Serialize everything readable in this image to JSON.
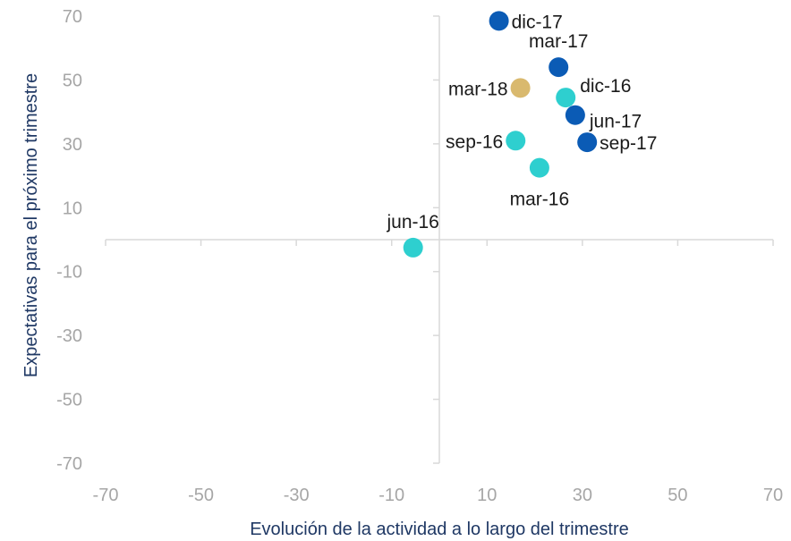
{
  "chart_data": {
    "type": "scatter",
    "title": "",
    "xlabel": "Evolución de la actividad a lo largo del trimestre",
    "ylabel": "Expectativas para el próximo trimestre",
    "xlim": [
      -70,
      70
    ],
    "ylim": [
      -70,
      70
    ],
    "x_ticks": [
      "-70",
      "-50",
      "-30",
      "-10",
      "10",
      "30",
      "50",
      "70"
    ],
    "y_ticks": [
      "70",
      "50",
      "30",
      "10",
      "-10",
      "-30",
      "-50",
      "-70"
    ],
    "grid": false,
    "legend": "none",
    "colors": {
      "2016": "#2ecfcf",
      "2017": "#0b5bb5",
      "2018": "#d9b96e"
    },
    "points": [
      {
        "label": "mar-16",
        "x": 21,
        "y": 22.5,
        "group": "2016",
        "label_pos": "below"
      },
      {
        "label": "jun-16",
        "x": -5.5,
        "y": -2.5,
        "group": "2016",
        "label_pos": "above"
      },
      {
        "label": "sep-16",
        "x": 16,
        "y": 31,
        "group": "2016",
        "label_pos": "left"
      },
      {
        "label": "dic-16",
        "x": 26.5,
        "y": 44.5,
        "group": "2016",
        "label_pos": "right-above"
      },
      {
        "label": "mar-17",
        "x": 25,
        "y": 54,
        "group": "2017",
        "label_pos": "above"
      },
      {
        "label": "jun-17",
        "x": 28.5,
        "y": 39,
        "group": "2017",
        "label_pos": "right-below"
      },
      {
        "label": "sep-17",
        "x": 31,
        "y": 30.5,
        "group": "2017",
        "label_pos": "right"
      },
      {
        "label": "dic-17",
        "x": 12.5,
        "y": 68.5,
        "group": "2017",
        "label_pos": "right"
      },
      {
        "label": "mar-18",
        "x": 17,
        "y": 47.5,
        "group": "2018",
        "label_pos": "left"
      }
    ]
  }
}
